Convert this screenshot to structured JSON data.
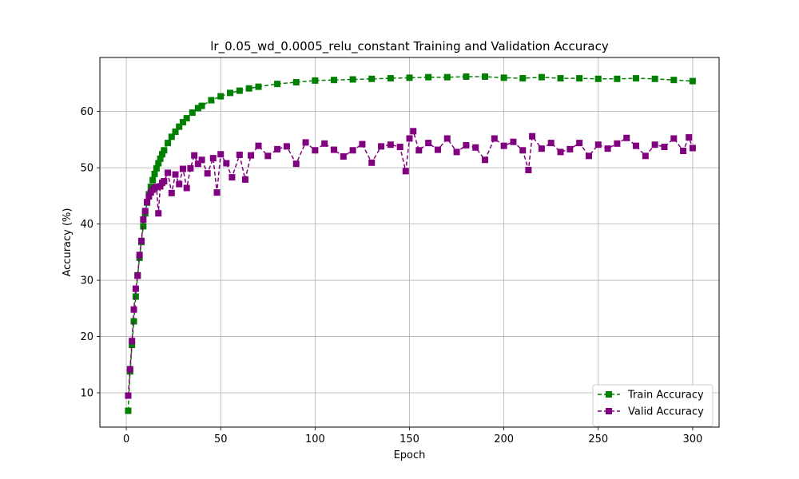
{
  "chart_data": {
    "type": "line",
    "title": "lr_0.05_wd_0.0005_relu_constant Training and Validation Accuracy",
    "xlabel": "Epoch",
    "ylabel": "Accuracy (%)",
    "xlim": [
      -14,
      314
    ],
    "ylim": [
      3.9,
      69.6
    ],
    "xticks": [
      0,
      50,
      100,
      150,
      200,
      250,
      300
    ],
    "yticks": [
      10,
      20,
      30,
      40,
      50,
      60
    ],
    "grid": true,
    "legend_position": "lower-right",
    "series": [
      {
        "name": "Train Accuracy",
        "color": "#008000",
        "marker": "square",
        "linestyle": "dashed",
        "x": [
          1,
          2,
          3,
          4,
          5,
          6,
          7,
          8,
          9,
          10,
          11,
          12,
          13,
          14,
          15,
          16,
          17,
          18,
          19,
          20,
          22,
          24,
          26,
          28,
          30,
          32,
          35,
          38,
          40,
          45,
          50,
          55,
          60,
          65,
          70,
          80,
          90,
          100,
          110,
          120,
          130,
          140,
          150,
          160,
          170,
          180,
          190,
          200,
          210,
          220,
          230,
          240,
          250,
          260,
          270,
          280,
          290,
          300
        ],
        "values": [
          6.8,
          13.8,
          18.5,
          22.7,
          27.1,
          30.9,
          34.0,
          36.8,
          39.6,
          41.9,
          43.8,
          45.3,
          46.6,
          47.8,
          48.9,
          49.9,
          50.8,
          51.6,
          52.4,
          53.1,
          54.4,
          55.5,
          56.4,
          57.3,
          58.1,
          58.8,
          59.8,
          60.6,
          61.0,
          62.0,
          62.7,
          63.3,
          63.7,
          64.1,
          64.4,
          64.9,
          65.2,
          65.5,
          65.6,
          65.7,
          65.8,
          65.9,
          66.0,
          66.1,
          66.1,
          66.2,
          66.2,
          66.0,
          65.9,
          66.1,
          65.9,
          65.9,
          65.8,
          65.8,
          65.9,
          65.8,
          65.6,
          65.4
        ]
      },
      {
        "name": "Valid Accuracy",
        "color": "#800080",
        "marker": "square",
        "linestyle": "dashed",
        "x": [
          1,
          2,
          3,
          4,
          5,
          6,
          7,
          8,
          9,
          10,
          11,
          12,
          13,
          14,
          15,
          16,
          17,
          18,
          19,
          20,
          22,
          24,
          26,
          28,
          30,
          32,
          34,
          36,
          38,
          40,
          43,
          46,
          48,
          50,
          53,
          56,
          60,
          63,
          66,
          70,
          75,
          80,
          85,
          90,
          95,
          100,
          105,
          110,
          115,
          120,
          125,
          130,
          135,
          140,
          145,
          148,
          150,
          152,
          155,
          160,
          165,
          170,
          175,
          180,
          185,
          190,
          195,
          200,
          205,
          210,
          213,
          215,
          220,
          225,
          230,
          235,
          240,
          245,
          250,
          255,
          260,
          265,
          270,
          275,
          280,
          285,
          290,
          295,
          298,
          300
        ],
        "values": [
          9.5,
          14.2,
          19.2,
          24.8,
          28.5,
          30.8,
          34.5,
          37.0,
          40.8,
          42.3,
          43.9,
          44.9,
          45.6,
          46.1,
          46.4,
          46.6,
          41.9,
          46.7,
          47.3,
          47.6,
          49.1,
          45.5,
          48.8,
          47.1,
          49.8,
          46.4,
          49.9,
          52.2,
          50.7,
          51.4,
          49.0,
          51.7,
          45.6,
          52.4,
          50.8,
          48.3,
          52.3,
          47.9,
          52.2,
          53.9,
          52.1,
          53.3,
          53.8,
          50.7,
          54.5,
          53.1,
          54.3,
          53.2,
          52.0,
          53.1,
          54.2,
          50.9,
          53.8,
          54.1,
          53.7,
          49.4,
          55.2,
          56.5,
          53.1,
          54.4,
          53.2,
          55.2,
          52.8,
          54.0,
          53.6,
          51.4,
          55.2,
          53.9,
          54.6,
          53.1,
          49.6,
          55.6,
          53.4,
          54.4,
          52.8,
          53.3,
          54.4,
          52.1,
          54.1,
          53.4,
          54.3,
          55.3,
          53.9,
          52.1,
          54.1,
          53.7,
          55.2,
          53.0,
          55.4,
          53.5
        ]
      }
    ]
  }
}
